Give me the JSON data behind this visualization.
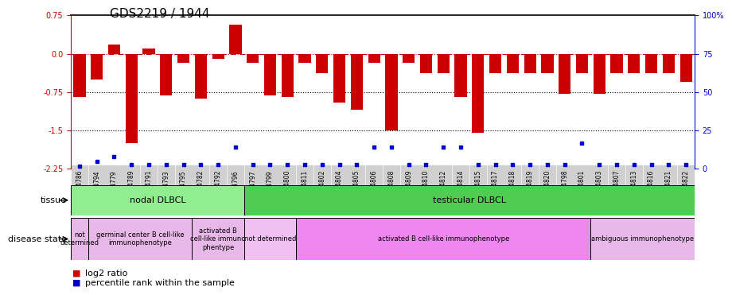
{
  "title": "GDS2219 / 1944",
  "samples": [
    "GSM94786",
    "GSM94794",
    "GSM94779",
    "GSM94789",
    "GSM94791",
    "GSM94793",
    "GSM94795",
    "GSM94782",
    "GSM94792",
    "GSM94796",
    "GSM94797",
    "GSM94799",
    "GSM94800",
    "GSM94811",
    "GSM94802",
    "GSM94804",
    "GSM94805",
    "GSM94806",
    "GSM94808",
    "GSM94809",
    "GSM94810",
    "GSM94812",
    "GSM94814",
    "GSM94815",
    "GSM94817",
    "GSM94818",
    "GSM94819",
    "GSM94820",
    "GSM94798",
    "GSM94801",
    "GSM94803",
    "GSM94807",
    "GSM94813",
    "GSM94816",
    "GSM94821",
    "GSM94822"
  ],
  "log2_ratio": [
    -0.85,
    -0.5,
    0.18,
    -1.75,
    0.1,
    -0.82,
    -0.18,
    -0.88,
    -0.1,
    0.57,
    -0.18,
    -0.82,
    -0.85,
    -0.18,
    -0.38,
    -0.95,
    -1.1,
    -0.18,
    -1.5,
    -0.18,
    -0.38,
    -0.38,
    -0.85,
    -1.55,
    -0.38,
    -0.38,
    -0.38,
    -0.38,
    -0.78,
    -0.38,
    -0.78,
    -0.38,
    -0.38,
    -0.38,
    -0.38,
    -0.55
  ],
  "percentile": [
    2,
    5,
    8,
    3,
    3,
    3,
    3,
    3,
    3,
    14,
    3,
    3,
    3,
    3,
    3,
    3,
    3,
    14,
    14,
    3,
    3,
    14,
    14,
    3,
    3,
    3,
    3,
    3,
    3,
    17,
    3,
    3,
    3,
    3,
    3,
    3
  ],
  "tissue_groups": [
    {
      "label": "nodal DLBCL",
      "start": 0,
      "end": 10,
      "color": "#90EE90"
    },
    {
      "label": "testicular DLBCL",
      "start": 10,
      "end": 36,
      "color": "#50CC50"
    }
  ],
  "disease_groups": [
    {
      "label": "not\ndetermined",
      "start": 0,
      "end": 1,
      "color": "#E8B8E8"
    },
    {
      "label": "germinal center B cell-like\nimmunophenotype",
      "start": 1,
      "end": 7,
      "color": "#E8B8E8"
    },
    {
      "label": "activated B\ncell-like immuno\nphentype",
      "start": 7,
      "end": 10,
      "color": "#E8B8E8"
    },
    {
      "label": "not determined",
      "start": 10,
      "end": 13,
      "color": "#F0C0F0"
    },
    {
      "label": "activated B cell-like immunophenotype",
      "start": 13,
      "end": 30,
      "color": "#EE88EE"
    },
    {
      "label": "ambiguous immunophenotype",
      "start": 30,
      "end": 36,
      "color": "#E8B8E8"
    }
  ],
  "bar_color": "#CC0000",
  "dot_color": "#0000CC",
  "left_axis_color": "#CC0000",
  "right_axis_color": "#0000CC",
  "yticks_left": [
    0.75,
    0.0,
    -0.75,
    -1.5,
    -2.25
  ],
  "yticks_right": [
    100,
    75,
    50,
    25,
    0
  ],
  "title_fontsize": 11,
  "tick_fontsize": 7,
  "label_fontsize": 8,
  "ymin": -2.25,
  "ymax": 0.75
}
